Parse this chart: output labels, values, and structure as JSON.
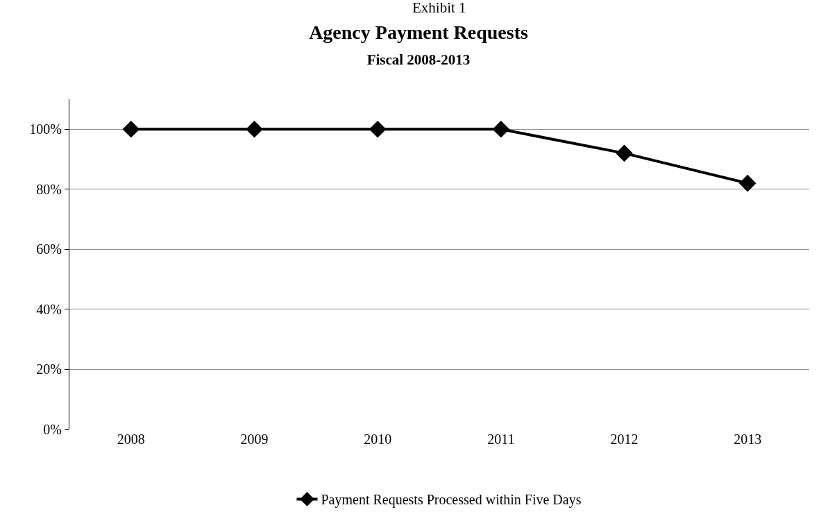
{
  "chart_data": {
    "type": "line",
    "title": "Agency Payment Requests",
    "subtitle": "Fiscal 2008-2013",
    "annotations": [
      "Exhibit 1"
    ],
    "categories": [
      "2008",
      "2009",
      "2010",
      "2011",
      "2012",
      "2013"
    ],
    "series": [
      {
        "name": "Payment Requests Processed within Five Days",
        "color": "#000000",
        "values": [
          100,
          100,
          100,
          100,
          92,
          82
        ]
      }
    ],
    "ylim": [
      0,
      110
    ],
    "yticks": [
      {
        "value": 0,
        "label": "0%"
      },
      {
        "value": 20,
        "label": "20%"
      },
      {
        "value": 40,
        "label": "40%"
      },
      {
        "value": 60,
        "label": "60%"
      },
      {
        "value": 80,
        "label": "80%"
      },
      {
        "value": 100,
        "label": "100%"
      }
    ],
    "grid": "y",
    "legend": "bottom",
    "marker": "diamond",
    "line_style": "solid"
  }
}
